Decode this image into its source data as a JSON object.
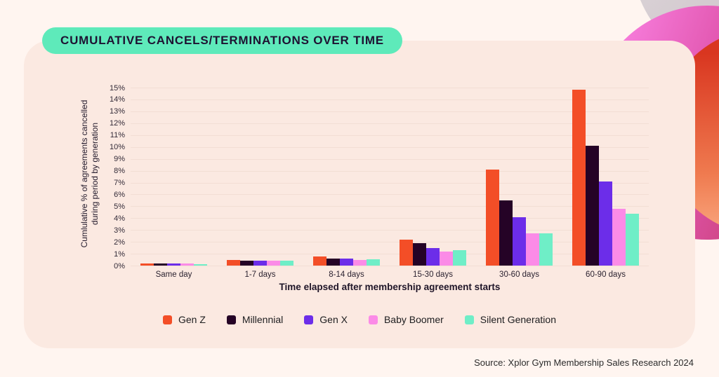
{
  "title": "CUMULATIVE CANCELS/TERMINATIONS OVER TIME",
  "source": "Source: Xplor Gym Membership Sales Research 2024",
  "chart_data": {
    "type": "bar",
    "title": "Cumulative cancels/terminations over time",
    "xlabel": "Time elapsed after membership agreement starts",
    "ylabel_line1": "Cumlulative % of agreements cancelled",
    "ylabel_line2": "during period by generation",
    "ylim": [
      0,
      15
    ],
    "grid": true,
    "legend_position": "bottom",
    "y_ticks": [
      "15%",
      "14%",
      "13%",
      "12%",
      "11%",
      "10%",
      "9%",
      "8%",
      "7%",
      "6%",
      "5%",
      "4%",
      "3%",
      "2%",
      "1%",
      "0%"
    ],
    "categories": [
      "Same day",
      "1-7 days",
      "8-14 days",
      "15-30 days",
      "30-60 days",
      "60-90 days"
    ],
    "series": [
      {
        "name": "Gen Z",
        "color": "#F34E27",
        "values": [
          0.2,
          0.5,
          0.8,
          2.2,
          8.1,
          14.8
        ]
      },
      {
        "name": "Millennial",
        "color": "#250326",
        "values": [
          0.2,
          0.4,
          0.6,
          1.9,
          5.5,
          10.1
        ]
      },
      {
        "name": "Gen X",
        "color": "#6C2DE9",
        "values": [
          0.2,
          0.4,
          0.6,
          1.5,
          4.1,
          7.1
        ]
      },
      {
        "name": "Baby Boomer",
        "color": "#FB8BE7",
        "values": [
          0.2,
          0.4,
          0.5,
          1.2,
          2.7,
          4.8
        ]
      },
      {
        "name": "Silent Generation",
        "color": "#6FEEC7",
        "values": [
          0.15,
          0.4,
          0.55,
          1.3,
          2.7,
          4.4
        ]
      }
    ]
  },
  "decor": {
    "gray_circle": "#D5CCD1",
    "magenta_circle": "#E054AC",
    "orange_circle": "#E8552F",
    "panel_bg": "#FBE9E1",
    "page_bg": "#FFF5F0",
    "pill_bg": "#5EEABA"
  }
}
